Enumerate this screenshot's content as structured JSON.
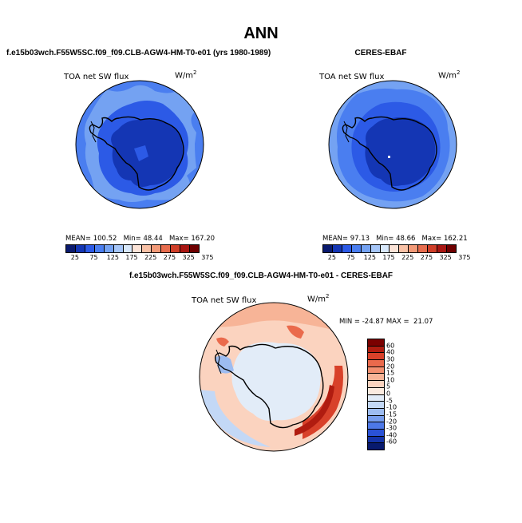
{
  "title": "ANN",
  "panels": {
    "left": {
      "title": "f.e15b03wch.F55W5SC.f09_f09.CLB-AGW4-HM-T0-e01 (yrs 1980-1989)",
      "variable": "TOA net SW flux",
      "units": "W/m",
      "units_exp": "2",
      "mean_label": "MEAN=",
      "mean": "100.52",
      "min_label": "Min=",
      "min": "48.44",
      "max_label": "Max=",
      "max": "167.20"
    },
    "right": {
      "title": "CERES-EBAF",
      "variable": "TOA net SW flux",
      "units": "W/m",
      "units_exp": "2",
      "mean_label": "MEAN=",
      "mean": "97.13",
      "min_label": "Min=",
      "min": "48.66",
      "max_label": "Max=",
      "max": "162.21"
    },
    "diff": {
      "title": "f.e15b03wch.F55W5SC.f09_f09.CLB-AGW4-HM-T0-e01 - CERES-EBAF",
      "variable": "TOA net SW flux",
      "units": "W/m",
      "units_exp": "2",
      "min_label": "MIN =",
      "min": "-24.87",
      "max_label": "MAX =",
      "max": "21.07"
    }
  },
  "colorbar_abs": {
    "colors": [
      "#0a1a6e",
      "#1436b4",
      "#2c5ae6",
      "#4a7ef0",
      "#74a2f2",
      "#a6c6f8",
      "#d8e8fb",
      "#fbe3d7",
      "#f8c1a6",
      "#f29a78",
      "#e76d4e",
      "#cf3e28",
      "#a81612",
      "#6e0000"
    ],
    "ticks": [
      "25",
      "75",
      "125",
      "175",
      "225",
      "275",
      "325",
      "375"
    ]
  },
  "colorbar_diff": {
    "colors": [
      "#7a0000",
      "#b01c10",
      "#d8412a",
      "#ea6a4c",
      "#f39070",
      "#f7b497",
      "#fbd3bf",
      "#fbebe0",
      "#e2ecf8",
      "#c3d8f6",
      "#9dbcf1",
      "#779ded",
      "#4d78e7",
      "#2a52d6",
      "#1433a8",
      "#081a6e"
    ],
    "ticks": [
      "60",
      "40",
      "30",
      "20",
      "15",
      "10",
      "5",
      "0",
      "-5",
      "-10",
      "-15",
      "-20",
      "-30",
      "-40",
      "-60"
    ]
  }
}
